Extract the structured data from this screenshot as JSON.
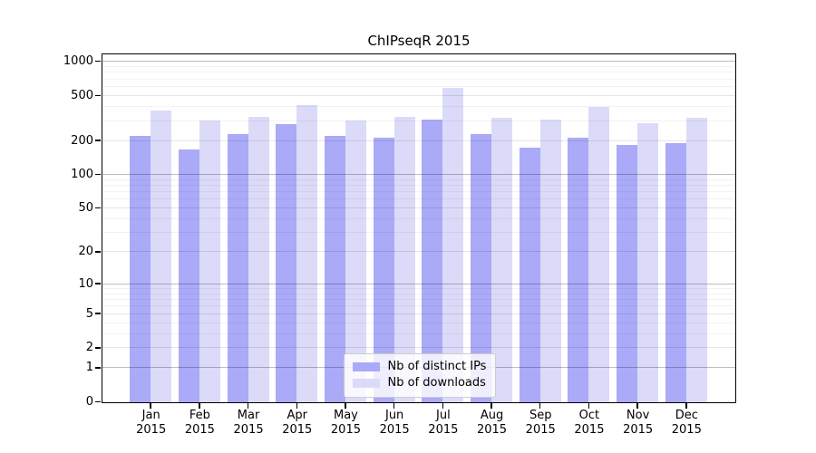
{
  "page": {
    "background": "#ffffff"
  },
  "chart_data": {
    "type": "bar",
    "title": "ChIPseqR 2015",
    "categories": [
      "Jan",
      "Feb",
      "Mar",
      "Apr",
      "May",
      "Jun",
      "Jul",
      "Aug",
      "Sep",
      "Oct",
      "Nov",
      "Dec"
    ],
    "category_year": "2015",
    "series": [
      {
        "name": "Nb of distinct IPs",
        "color": "#aaaaf8",
        "values": [
          220,
          165,
          228,
          280,
          221,
          210,
          307,
          226,
          174,
          213,
          184,
          191
        ]
      },
      {
        "name": "Nb of downloads",
        "color": "#dbdbf9",
        "values": [
          370,
          299,
          324,
          414,
          303,
          326,
          580,
          315,
          305,
          400,
          287,
          316
        ]
      }
    ],
    "xlabel": "",
    "ylabel": "",
    "y_ticks": [
      0,
      1,
      2,
      5,
      10,
      20,
      50,
      100,
      200,
      500,
      1000
    ],
    "y_scale": "log10(1+x)",
    "ylim": [
      0,
      1145
    ],
    "grid": true,
    "legend_position": "bottom-center-inside",
    "axis_color": "#000000"
  }
}
